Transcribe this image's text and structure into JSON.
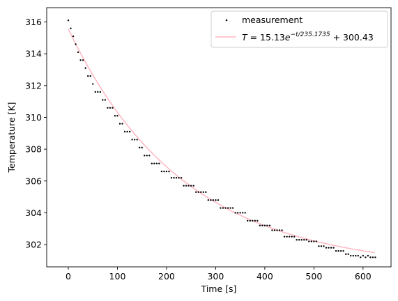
{
  "chart_data": {
    "type": "scatter",
    "xlabel": "Time [s]",
    "ylabel": "Temperature [K]",
    "xlim": [
      -44,
      657
    ],
    "ylim": [
      300.6,
      316.9
    ],
    "xticks": [
      0,
      100,
      200,
      300,
      400,
      500,
      600
    ],
    "yticks": [
      302,
      304,
      306,
      308,
      310,
      312,
      314,
      316
    ],
    "grid": false,
    "legend_placement": "top-right",
    "series": [
      {
        "name": "measurement",
        "kind": "points",
        "color": "#000000",
        "x": [
          0,
          5,
          10,
          15,
          20,
          25,
          30,
          35,
          40,
          45,
          50,
          55,
          60,
          65,
          70,
          75,
          80,
          85,
          90,
          95,
          100,
          105,
          110,
          115,
          120,
          125,
          130,
          135,
          140,
          145,
          150,
          155,
          160,
          165,
          170,
          175,
          180,
          185,
          190,
          195,
          200,
          205,
          210,
          215,
          220,
          225,
          230,
          235,
          240,
          245,
          250,
          255,
          260,
          265,
          270,
          275,
          280,
          285,
          290,
          295,
          300,
          305,
          310,
          315,
          320,
          325,
          330,
          335,
          340,
          345,
          350,
          355,
          360,
          365,
          370,
          375,
          380,
          385,
          390,
          395,
          400,
          405,
          410,
          415,
          420,
          425,
          430,
          435,
          440,
          445,
          450,
          455,
          460,
          465,
          470,
          475,
          480,
          485,
          490,
          495,
          500,
          505,
          510,
          515,
          520,
          525,
          530,
          535,
          540,
          545,
          550,
          555,
          560,
          565,
          570,
          575,
          580,
          585,
          590,
          595,
          600,
          605,
          610,
          615,
          620,
          625
        ],
        "y": [
          316.1,
          315.6,
          315.1,
          314.6,
          314.1,
          313.6,
          313.6,
          313.1,
          312.6,
          312.6,
          312.1,
          311.6,
          311.6,
          311.6,
          311.1,
          311.1,
          310.6,
          310.6,
          310.6,
          310.1,
          310.1,
          309.6,
          309.6,
          309.1,
          309.1,
          309.1,
          308.6,
          308.6,
          308.6,
          308.1,
          308.1,
          307.6,
          307.6,
          307.6,
          307.1,
          307.1,
          307.1,
          307.1,
          306.6,
          306.6,
          306.6,
          306.6,
          306.2,
          306.2,
          306.2,
          306.2,
          306.2,
          305.7,
          305.7,
          305.7,
          305.7,
          305.7,
          305.3,
          305.3,
          305.3,
          305.3,
          305.3,
          304.8,
          304.8,
          304.8,
          304.8,
          304.8,
          304.3,
          304.3,
          304.3,
          304.3,
          304.3,
          304.3,
          304.0,
          304.0,
          304.0,
          304.0,
          304.0,
          303.5,
          303.5,
          303.5,
          303.5,
          303.5,
          303.2,
          303.2,
          303.2,
          303.2,
          303.2,
          302.9,
          302.9,
          302.9,
          302.9,
          302.9,
          302.5,
          302.5,
          302.5,
          302.5,
          302.5,
          302.3,
          302.3,
          302.3,
          302.3,
          302.3,
          302.2,
          302.2,
          302.2,
          302.2,
          301.9,
          301.9,
          301.9,
          301.8,
          301.8,
          301.8,
          301.8,
          301.6,
          301.6,
          301.6,
          301.6,
          301.4,
          301.4,
          301.3,
          301.3,
          301.3,
          301.3,
          301.2,
          301.3,
          301.2,
          301.3,
          301.2,
          301.2,
          301.2
        ]
      },
      {
        "name": "fit",
        "kind": "line",
        "color": "#ffb6c1",
        "model": {
          "A": 15.13,
          "tau": 235.1735,
          "C": 300.43
        },
        "x_range": [
          0,
          625
        ]
      }
    ],
    "legend": {
      "measurement": "measurement",
      "fit_parts": {
        "lhs": "T",
        "equals": " = 15.13",
        "e": "e",
        "exponent": "−t/235.1735",
        "tail": " + 300.43"
      }
    }
  }
}
